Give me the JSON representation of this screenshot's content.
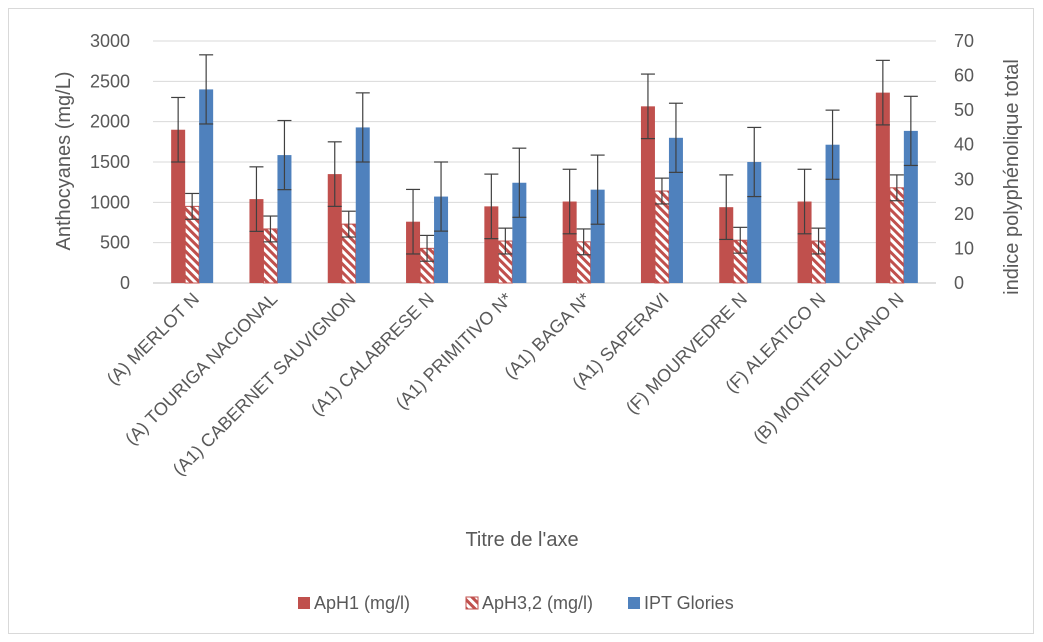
{
  "chart_data": {
    "type": "bar",
    "title": "",
    "xlabel": "Titre de l'axe",
    "ylabel": "Anthocyanes (mg/L)",
    "y2label": "indice polyphénolique total",
    "ylim": [
      0,
      3000
    ],
    "yticks": [
      "0",
      "500",
      "1000",
      "1500",
      "2000",
      "2500",
      "3000"
    ],
    "y2lim": [
      0,
      70
    ],
    "y2ticks": [
      "0",
      "10",
      "20",
      "30",
      "40",
      "50",
      "60",
      "70"
    ],
    "categories": [
      "(A) MERLOT N",
      "(A) TOURIGA NACIONAL",
      "(A1) CABERNET SAUVIGNON",
      "(A1) CALABRESE N",
      "(A1) PRIMITIVO N*",
      "(A1) BAGA N*",
      "(A1) SAPERAVI",
      "(F) MOURVEDRE N",
      "(F) ALEATICO N",
      "(B) MONTEPULCIANO N"
    ],
    "series": [
      {
        "name": "ApH1 (mg/l)",
        "axis": "left",
        "pattern": "solid",
        "color": "#c0504d",
        "values": [
          1900,
          1040,
          1350,
          760,
          950,
          1010,
          2190,
          940,
          1010,
          2360
        ],
        "errors": [
          400,
          400,
          400,
          400,
          400,
          400,
          400,
          400,
          400,
          400
        ]
      },
      {
        "name": "ApH3,2 (mg/l)",
        "axis": "left",
        "pattern": "hatch",
        "color": "#c0504d",
        "values": [
          950,
          670,
          730,
          430,
          520,
          510,
          1140,
          530,
          520,
          1180
        ],
        "errors": [
          160,
          160,
          160,
          160,
          160,
          160,
          160,
          160,
          160,
          160
        ]
      },
      {
        "name": "IPT Glories",
        "axis": "right",
        "pattern": "solid",
        "color": "#4f81bd",
        "values": [
          56,
          37,
          45,
          25,
          29,
          27,
          42,
          35,
          40,
          44
        ],
        "errors": [
          10,
          10,
          10,
          10,
          10,
          10,
          10,
          10,
          10,
          10
        ]
      }
    ],
    "grid": true,
    "legend": "bottom"
  }
}
